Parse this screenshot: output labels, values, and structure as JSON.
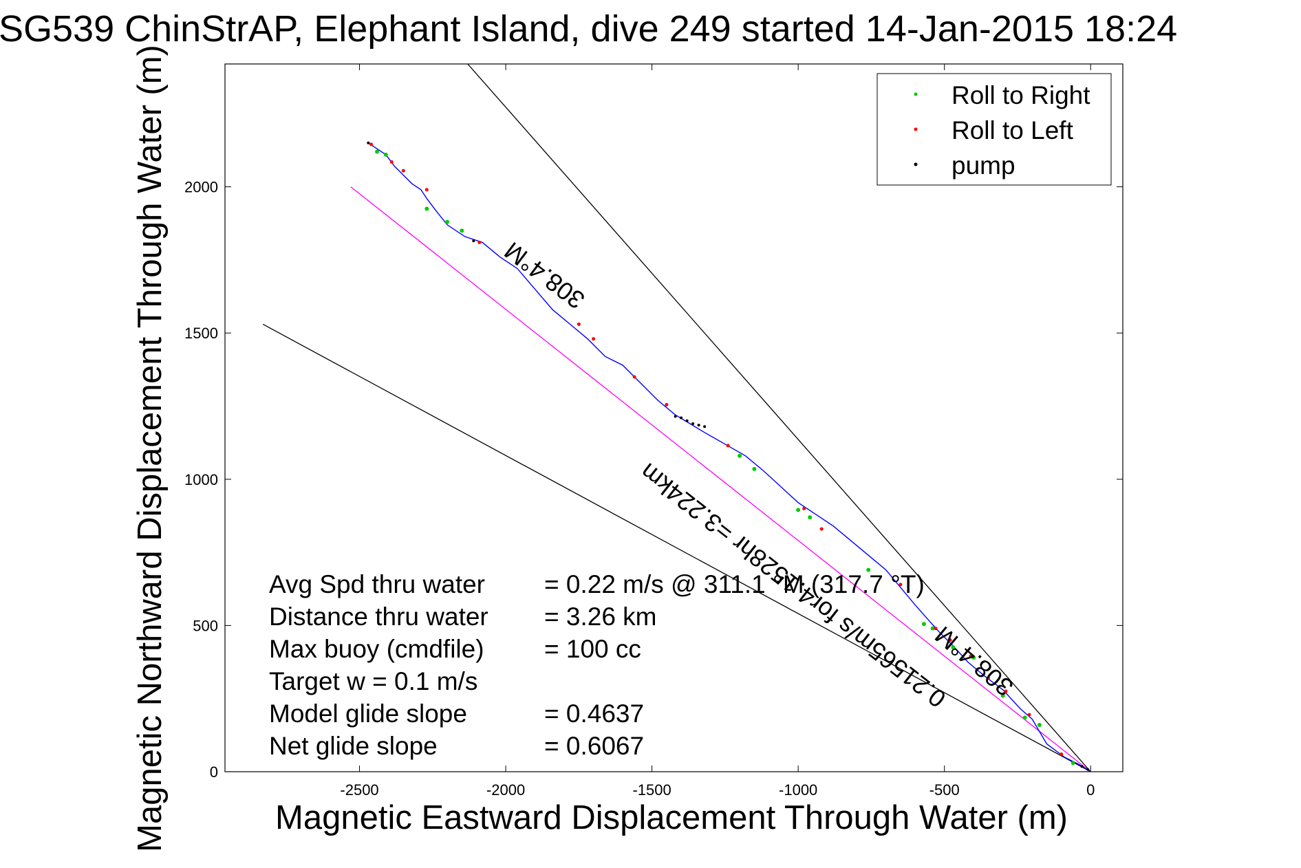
{
  "chart_data": {
    "type": "line",
    "title": "SG539 ChinStrAP, Elephant Island, dive 249 started 14-Jan-2015 18:24",
    "xlabel": "Magnetic Eastward Displacement Through Water (m)",
    "ylabel": "Magnetic Northward Displacement Through Water (m)",
    "xlim": [
      -2960,
      110
    ],
    "ylim": [
      0,
      2420
    ],
    "x_ticks": [
      -2500,
      -2000,
      -1500,
      -1000,
      -500,
      0
    ],
    "y_ticks": [
      0,
      500,
      1000,
      1500,
      2000
    ],
    "grid": false,
    "legend_placement": "top-right",
    "legend": [
      {
        "label": "Roll to Right",
        "color": "#00cc00"
      },
      {
        "label": "Roll to Left",
        "color": "#ff0000"
      },
      {
        "label": "pump",
        "color": "#000000"
      }
    ],
    "track": {
      "color": "#0000ff",
      "x": [
        0,
        -40,
        -90,
        -150,
        -200,
        -240,
        -300,
        -360,
        -420,
        -470,
        -520,
        -560,
        -600,
        -650,
        -700,
        -760,
        -820,
        -880,
        -940,
        -1000,
        -1060,
        -1120,
        -1180,
        -1250,
        -1320,
        -1370,
        -1420,
        -1480,
        -1540,
        -1600,
        -1660,
        -1720,
        -1780,
        -1840,
        -1900,
        -1960,
        -2020,
        -2080,
        -2140,
        -2200,
        -2240,
        -2270,
        -2290,
        -2320,
        -2350,
        -2380,
        -2410,
        -2440,
        -2470
      ],
      "y": [
        0,
        25,
        50,
        95,
        180,
        215,
        280,
        325,
        375,
        430,
        480,
        525,
        570,
        630,
        690,
        740,
        790,
        840,
        880,
        920,
        975,
        1030,
        1080,
        1120,
        1160,
        1190,
        1220,
        1270,
        1330,
        1390,
        1420,
        1480,
        1530,
        1580,
        1650,
        1720,
        1760,
        1810,
        1830,
        1870,
        1920,
        1960,
        1990,
        2010,
        2040,
        2070,
        2110,
        2130,
        2150
      ]
    },
    "roll_right": {
      "x": [
        -60,
        -175,
        -225,
        -300,
        -400,
        -470,
        -540,
        -570,
        -760,
        -960,
        -1000,
        -1150,
        -1200,
        -2150,
        -2200,
        -2270,
        -2410,
        -2440
      ],
      "y": [
        30,
        160,
        185,
        260,
        390,
        425,
        490,
        505,
        690,
        870,
        895,
        1035,
        1080,
        1850,
        1880,
        1925,
        2110,
        2120
      ]
    },
    "roll_left": {
      "x": [
        -100,
        -210,
        -290,
        -350,
        -410,
        -480,
        -530,
        -650,
        -920,
        -980,
        -1240,
        -1450,
        -1560,
        -1700,
        -1750,
        -2090,
        -2270,
        -2350,
        -2390,
        -2460
      ],
      "y": [
        60,
        195,
        275,
        320,
        395,
        450,
        490,
        640,
        830,
        900,
        1115,
        1255,
        1350,
        1480,
        1530,
        1810,
        1990,
        2055,
        2085,
        2145
      ]
    },
    "pump": {
      "x": [
        -10,
        -30,
        -1320,
        -1340,
        -1360,
        -1380,
        -1400,
        -1420,
        -2110,
        -2470
      ],
      "y": [
        8,
        18,
        1180,
        1185,
        1190,
        1200,
        1210,
        1215,
        1815,
        2150
      ]
    },
    "reference_lines": [
      {
        "name": "magenta",
        "color": "#ff00ff",
        "x": [
          0,
          -2530
        ],
        "y": [
          0,
          2000
        ]
      },
      {
        "name": "upper",
        "color": "#000000",
        "x": [
          0,
          -2130
        ],
        "y": [
          0,
          2420
        ]
      },
      {
        "name": "lower",
        "color": "#000000",
        "x": [
          0,
          -2830
        ],
        "y": [
          0,
          1530
        ]
      }
    ],
    "annotations": [
      {
        "text": "308.4°M",
        "x": -1850,
        "y": 1720,
        "rotate": 217
      },
      {
        "text": "0.21565m/s for4.1528hr =3.224km",
        "x": -1000,
        "y": 660,
        "rotate": 218
      },
      {
        "text": "308.4°M",
        "x": -380,
        "y": 400,
        "rotate": 220
      }
    ],
    "stats": [
      {
        "label": "Avg Spd thru water",
        "value": "=  0.22 m/s @ 311.1 °M (317.7 °T)"
      },
      {
        "label": "Distance thru water",
        "value": "=  3.26 km"
      },
      {
        "label": "Max buoy (cmdfile)",
        "value": "= 100 cc"
      },
      {
        "label": "Target w    = 0.1 m/s",
        "value": ""
      },
      {
        "label": "Model glide slope",
        "value": "= 0.4637"
      },
      {
        "label": "Net glide slope",
        "value": "= 0.6067"
      }
    ]
  }
}
